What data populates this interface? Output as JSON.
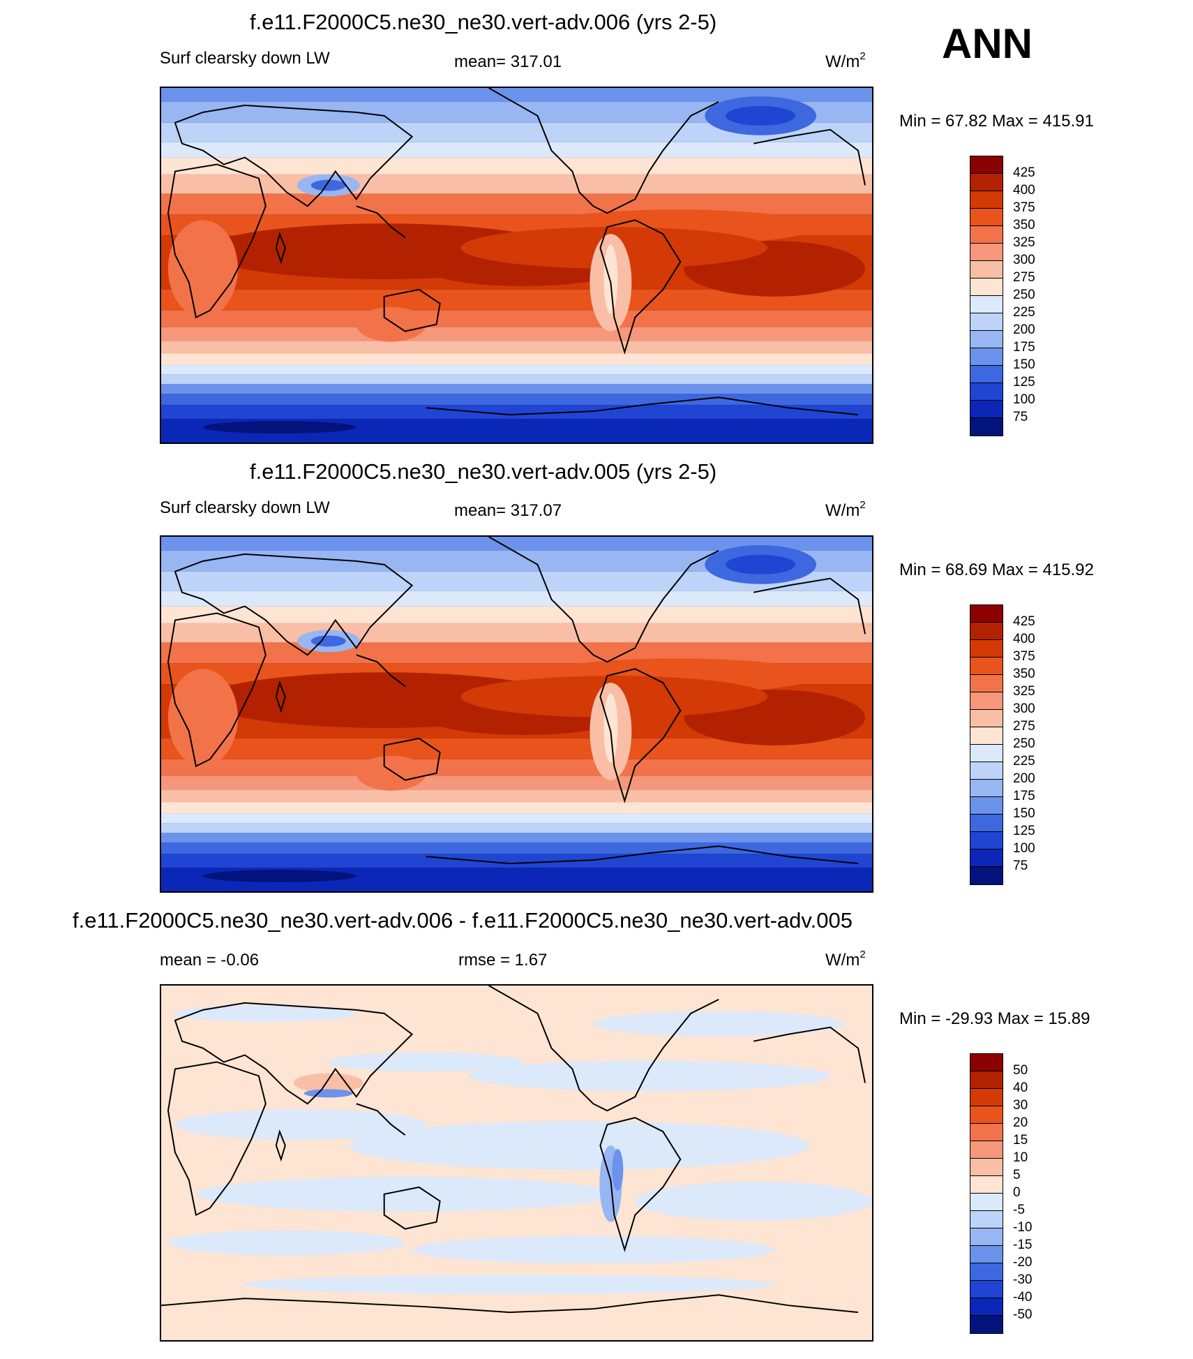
{
  "season": "ANN",
  "panels": [
    {
      "title": "f.e11.F2000C5.ne30_ne30.vert-adv.006 (yrs 2-5)",
      "left": "Surf clearsky down LW",
      "center": "mean= 317.01",
      "units": "W/m",
      "units_sup": "2",
      "minmax": "Min =  67.82 Max = 415.91",
      "colorbar_labels": [
        "425",
        "400",
        "375",
        "350",
        "325",
        "300",
        "275",
        "250",
        "225",
        "200",
        "175",
        "150",
        "125",
        "100",
        "75"
      ],
      "colors": [
        "#8b0000",
        "#b22200",
        "#d33a06",
        "#e8541b",
        "#f27349",
        "#f6967a",
        "#f9bea6",
        "#fde4d3",
        "#dbe9fa",
        "#bdd3f8",
        "#97b6f2",
        "#6c93ec",
        "#3d68e0",
        "#1f45d2",
        "#0b27b8",
        "#03137c"
      ]
    },
    {
      "title": "f.e11.F2000C5.ne30_ne30.vert-adv.005 (yrs 2-5)",
      "left": "Surf clearsky down LW",
      "center": "mean= 317.07",
      "units": "W/m",
      "units_sup": "2",
      "minmax": "Min =  68.69 Max = 415.92",
      "colorbar_labels": [
        "425",
        "400",
        "375",
        "350",
        "325",
        "300",
        "275",
        "250",
        "225",
        "200",
        "175",
        "150",
        "125",
        "100",
        "75"
      ],
      "colors": [
        "#8b0000",
        "#b22200",
        "#d33a06",
        "#e8541b",
        "#f27349",
        "#f6967a",
        "#f9bea6",
        "#fde4d3",
        "#dbe9fa",
        "#bdd3f8",
        "#97b6f2",
        "#6c93ec",
        "#3d68e0",
        "#1f45d2",
        "#0b27b8",
        "#03137c"
      ]
    },
    {
      "title": "f.e11.F2000C5.ne30_ne30.vert-adv.006 - f.e11.F2000C5.ne30_ne30.vert-adv.005",
      "left": "mean =  -0.06",
      "center": "rmse =   1.67",
      "units": "W/m",
      "units_sup": "2",
      "minmax": "Min = -29.93 Max =  15.89",
      "colorbar_labels": [
        "50",
        "40",
        "30",
        "20",
        "15",
        "10",
        "5",
        "0",
        "-5",
        "-10",
        "-15",
        "-20",
        "-30",
        "-40",
        "-50"
      ],
      "colors": [
        "#8b0000",
        "#b22200",
        "#d33a06",
        "#e8541b",
        "#f27349",
        "#f6967a",
        "#f9bea6",
        "#fde4d3",
        "#dbe9fa",
        "#bdd3f8",
        "#97b6f2",
        "#6c93ec",
        "#3d68e0",
        "#1f45d2",
        "#0b27b8",
        "#03137c"
      ]
    }
  ]
}
